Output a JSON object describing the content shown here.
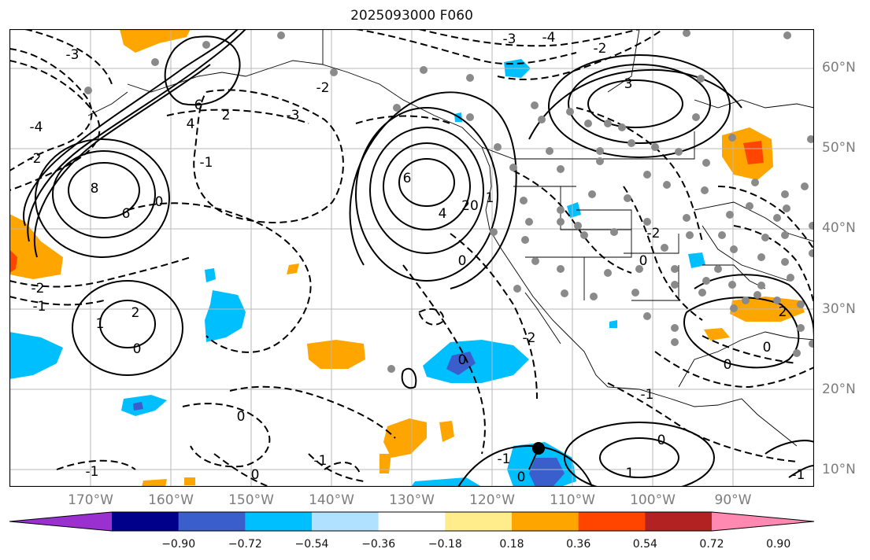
{
  "title": "2025093000 F060",
  "lat_labels": [
    "60°N",
    "50°N",
    "40°N",
    "30°N",
    "20°N",
    "10°N"
  ],
  "lon_labels": [
    "170°W",
    "160°W",
    "150°W",
    "140°W",
    "130°W",
    "120°W",
    "110°W",
    "100°W",
    "90°W"
  ],
  "colorbar": {
    "colors": [
      "#9b30d0",
      "#00008b",
      "#3a5fcd",
      "#00bfff",
      "#b0e2ff",
      "#ffffff",
      "#ffec8b",
      "#ffa500",
      "#ff4500",
      "#b22222",
      "#ff89b0"
    ],
    "tick_labels": [
      "−0.90",
      "−0.72",
      "−0.54",
      "−0.36",
      "−0.18",
      "0.18",
      "0.36",
      "0.54",
      "0.72",
      "0.90"
    ]
  },
  "contour_labels": [
    "-3",
    "-4",
    "-2",
    "-3",
    "-4",
    "-2",
    "6",
    "8",
    "6",
    "4",
    "2",
    "-1",
    "0",
    "-3",
    "-2",
    "6",
    "4",
    "3",
    "20",
    "1",
    "0",
    "-2",
    "-1",
    "1",
    "2",
    "0",
    "0",
    "-2",
    "0",
    "-1",
    "0",
    "-1",
    "0",
    "-1",
    "1",
    "0",
    "-1",
    "0",
    "2",
    "-2",
    "0",
    "0",
    "-1"
  ]
}
